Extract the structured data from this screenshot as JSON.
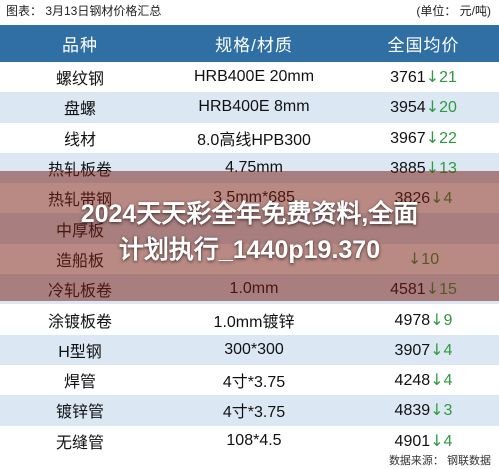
{
  "header": {
    "title": "图表： 3月13日钢材价格汇总",
    "unit": "(单位： 元/吨)"
  },
  "table": {
    "columns": [
      "品种",
      "规格/材质",
      "全国均价"
    ],
    "rows": [
      {
        "name": "螺纹钢",
        "spec": "HRB400E 20mm",
        "price": "3761",
        "change": "21"
      },
      {
        "name": "盘螺",
        "spec": "HRB400E 8mm",
        "price": "3954",
        "change": "20"
      },
      {
        "name": "线材",
        "spec": "8.0高线HPB300",
        "price": "3967",
        "change": "22"
      },
      {
        "name": "热轧板卷",
        "spec": "4.75mm",
        "price": "3885",
        "change": "13"
      },
      {
        "name": "热轧带钢",
        "spec": "3.5mm*685",
        "price": "3826",
        "change": "4"
      },
      {
        "name": "中厚板",
        "spec": "",
        "price": "",
        "change": ""
      },
      {
        "name": "造船板",
        "spec": "",
        "price": "",
        "change": "10"
      },
      {
        "name": "冷轧板卷",
        "spec": "1.0mm",
        "price": "4581",
        "change": "15"
      },
      {
        "name": "涂镀板卷",
        "spec": "1.0mm镀锌",
        "price": "4978",
        "change": "9"
      },
      {
        "name": "H型钢",
        "spec": "300*300",
        "price": "3907",
        "change": "4"
      },
      {
        "name": "焊管",
        "spec": "4寸*3.75",
        "price": "4248",
        "change": "4"
      },
      {
        "name": "镀锌管",
        "spec": "4寸*3.75",
        "price": "4839",
        "change": "3"
      },
      {
        "name": "无缝管",
        "spec": "108*4.5",
        "price": "4901",
        "change": "4"
      }
    ]
  },
  "overlay": {
    "line1": "2024天天彩全年免费资料,全面",
    "line2": "计划执行_1440p19.370"
  },
  "footer": {
    "source": "数据来源： 钢联数据"
  },
  "colors": {
    "header_bg": "#2f6fa3",
    "stripe": "#dbe8f4",
    "down": "#2e9b3e"
  },
  "icons": {
    "down_arrow": "down-arrow-icon"
  }
}
